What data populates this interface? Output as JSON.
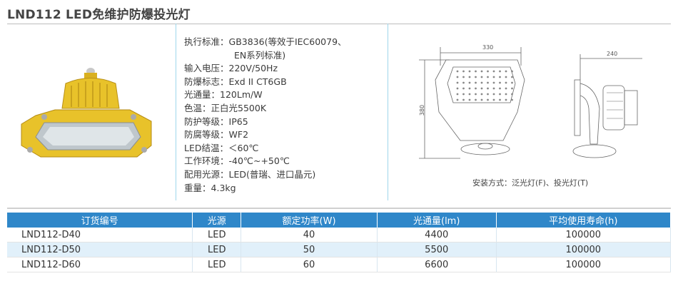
{
  "title": "LND112 LED免维护防爆投光灯",
  "specs": [
    {
      "label": "执行标准：",
      "value": "GB3836(等效于IEC60079、",
      "cont": "EN系列标准)"
    },
    {
      "label": "输入电压：",
      "value": "220V/50Hz"
    },
    {
      "label": "防爆标志：",
      "value": "Exd II CT6GB"
    },
    {
      "label": "光通量：",
      "value": "120Lm/W"
    },
    {
      "label": "色温：",
      "value": "正白光5500K"
    },
    {
      "label": "防护等级：",
      "value": "IP65"
    },
    {
      "label": "防腐等级：",
      "value": "WF2"
    },
    {
      "label": "LED结温：",
      "value": "＜60℃"
    },
    {
      "label": "工作环境：",
      "value": "-40℃~+50℃"
    },
    {
      "label": "配用光源：",
      "value": "LED(普瑞、进口晶元)"
    },
    {
      "label": "重量：",
      "value": "4.3kg"
    }
  ],
  "drawing": {
    "dim_width": "330",
    "dim_height": "380",
    "dim_depth": "240",
    "caption": "安装方式：泛光灯(F)、投光灯(T)"
  },
  "colors": {
    "header": "#2f87c9",
    "alt_row": "#e1f0fa",
    "lamp_body": "#e8c22a"
  },
  "table": {
    "headers": [
      "订货编号",
      "光源",
      "额定功率(W)",
      "光通量(lm)",
      "平均使用寿命(h)"
    ],
    "rows": [
      [
        "LND112-D40",
        "LED",
        "40",
        "4400",
        "100000"
      ],
      [
        "LND112-D50",
        "LED",
        "50",
        "5500",
        "100000"
      ],
      [
        "LND112-D60",
        "LED",
        "60",
        "6600",
        "100000"
      ]
    ]
  }
}
